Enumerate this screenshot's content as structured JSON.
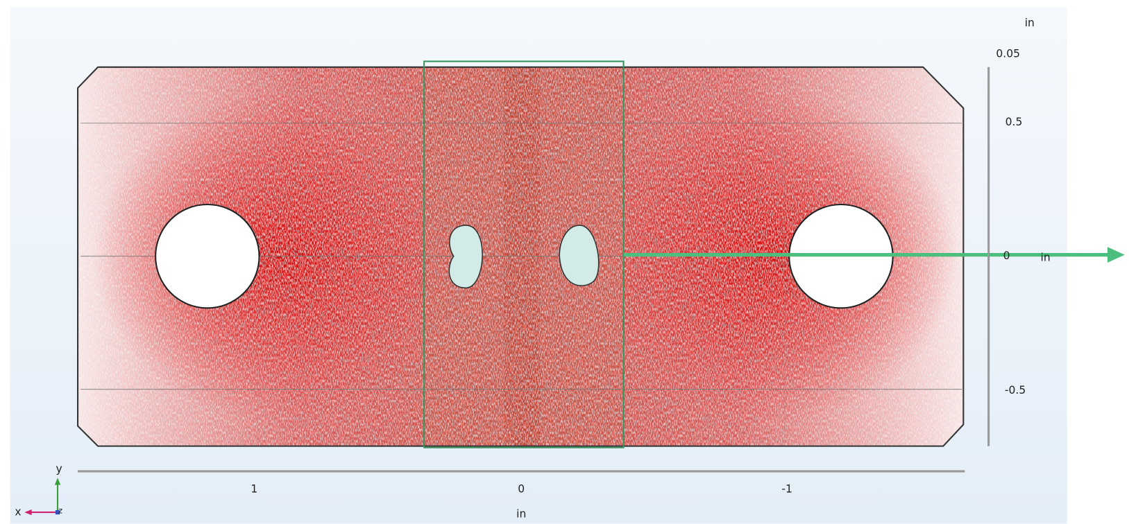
{
  "view": {
    "y_axis": {
      "unit_top": "in",
      "top_label": "0.05",
      "ticks": [
        "0.5",
        "0",
        "-0.5"
      ],
      "zero_unit": "in"
    },
    "x_axis": {
      "ticks": [
        "1",
        "0",
        "-1"
      ],
      "unit": "in"
    },
    "triad": {
      "y": "y",
      "x": "x",
      "z": "z"
    }
  }
}
